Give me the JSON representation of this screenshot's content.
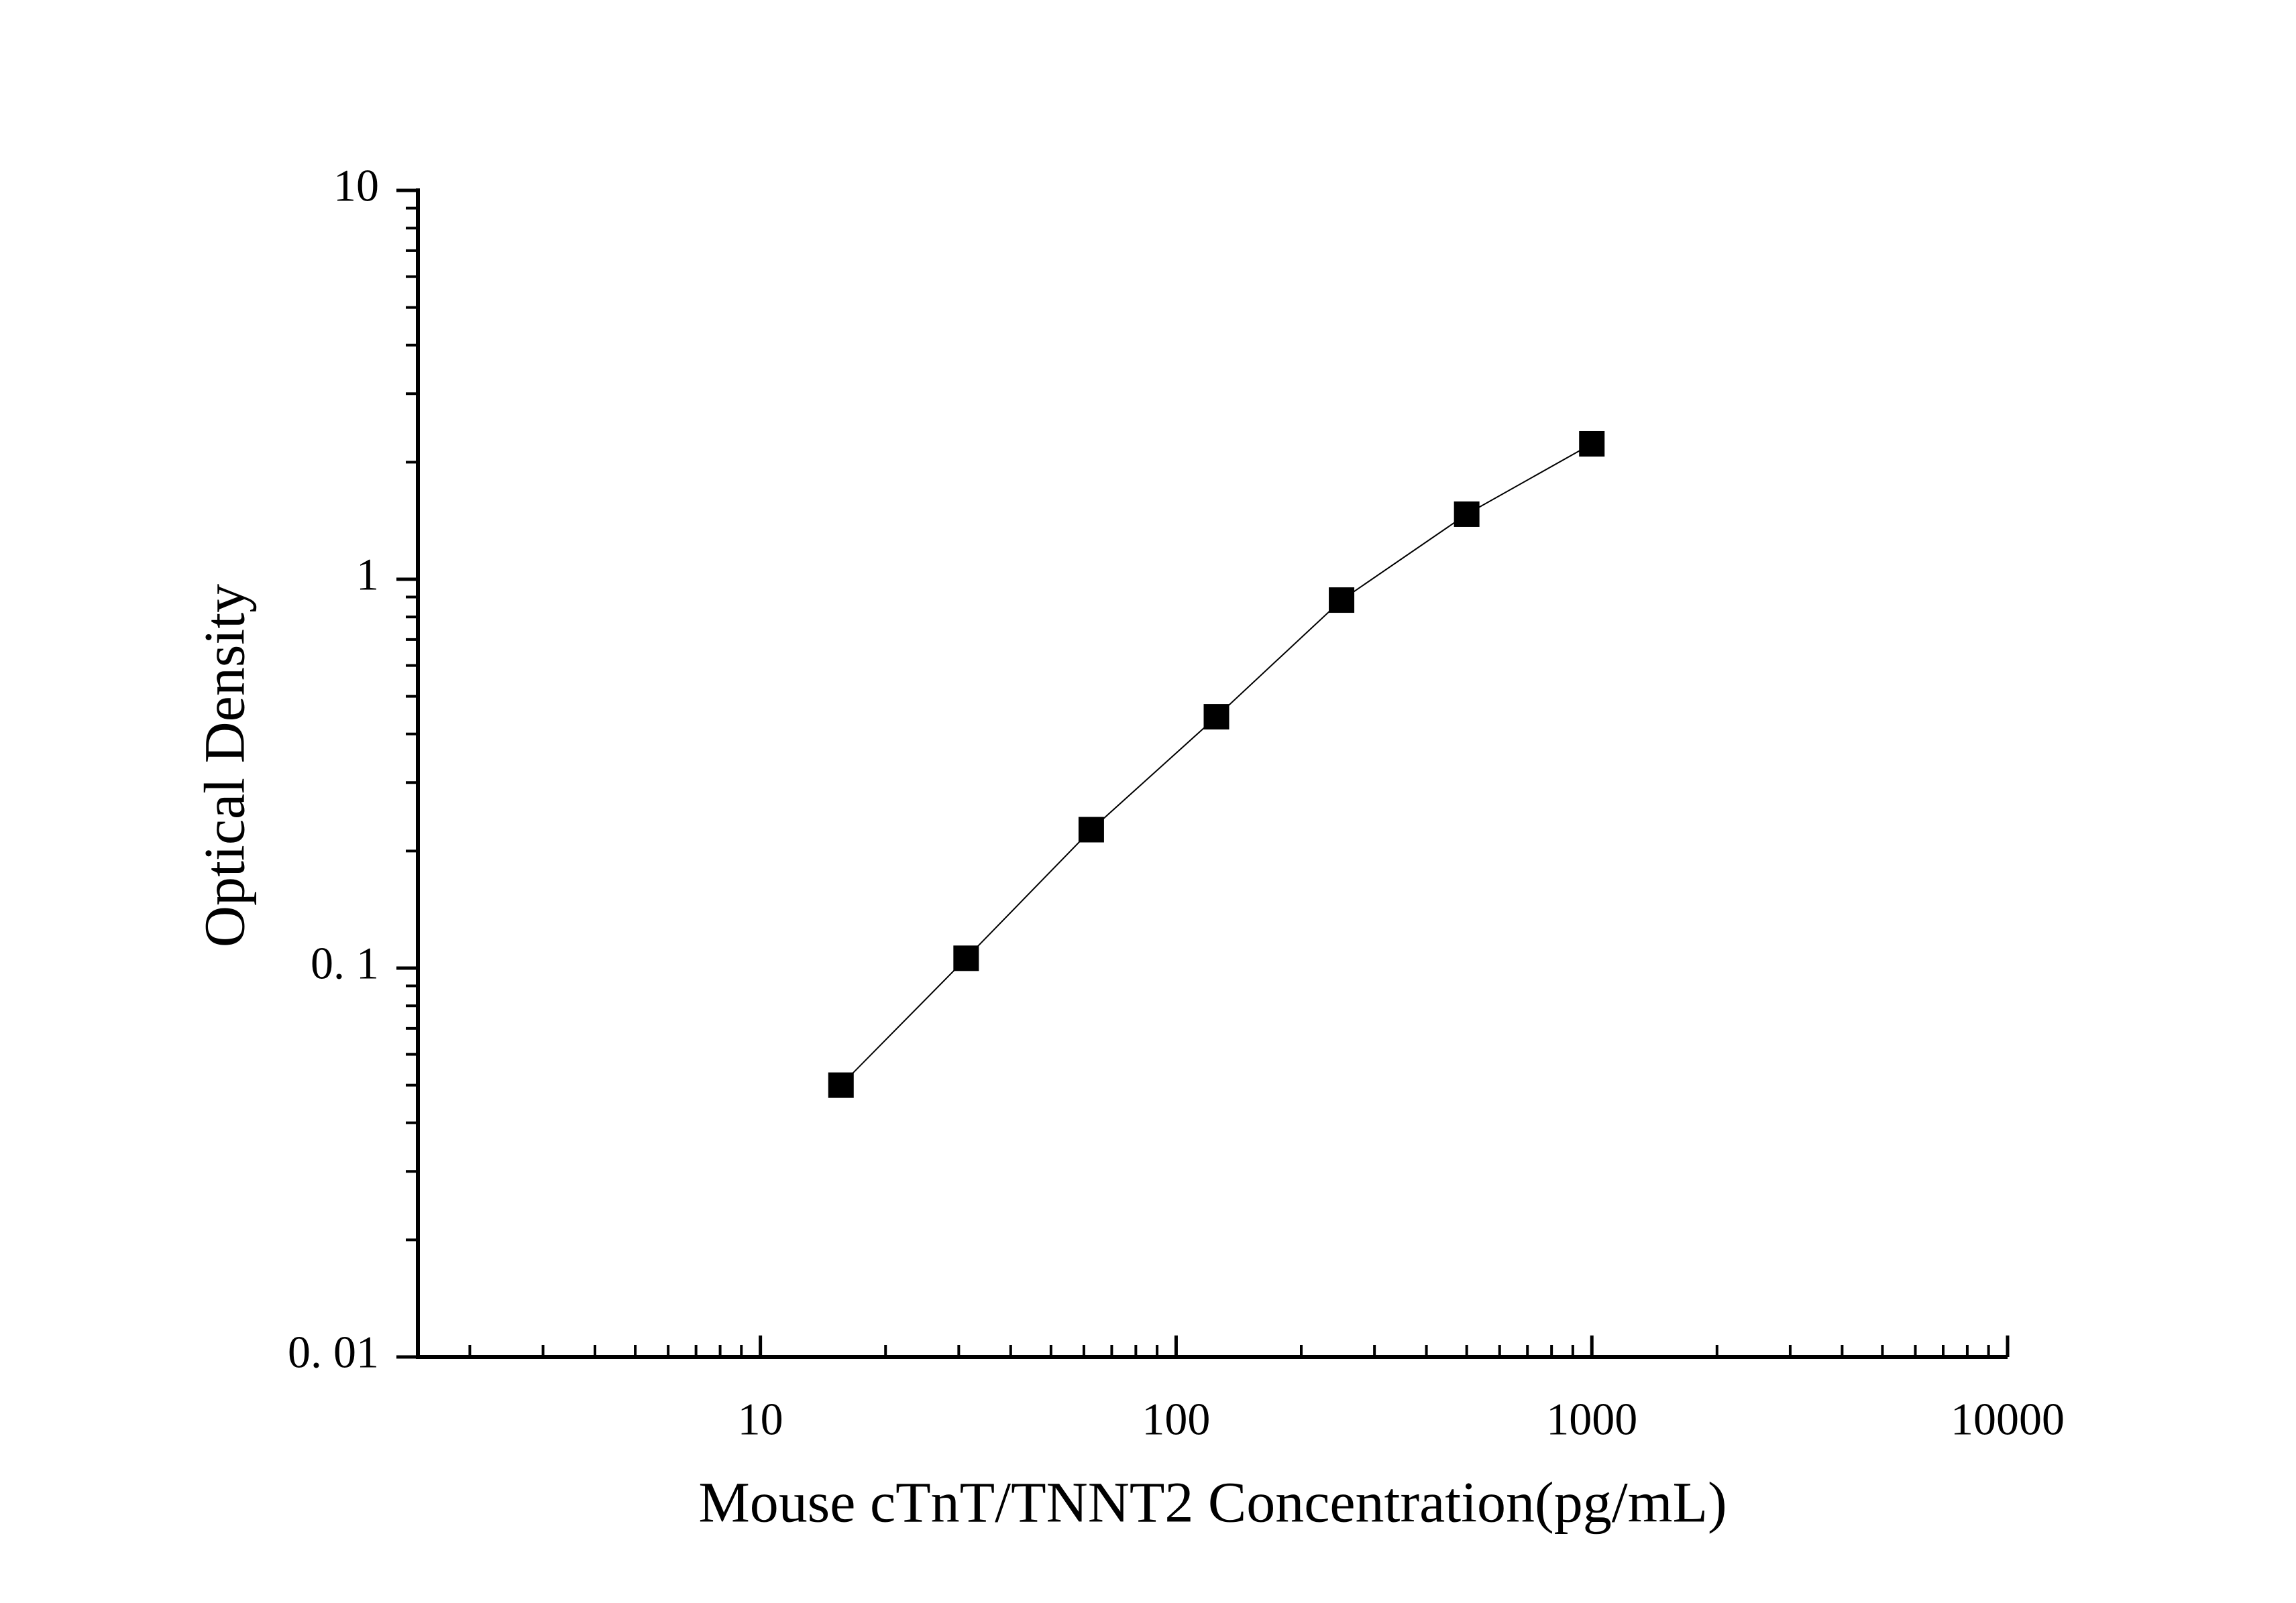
{
  "chart_data": {
    "type": "line",
    "xlabel": "Mouse cTnT/TNNT2 Concentration(pg/mL)",
    "ylabel": "Optical Density",
    "x": [
      15.625,
      31.25,
      62.5,
      125,
      250,
      500,
      1000
    ],
    "values": [
      0.05,
      0.106,
      0.227,
      0.443,
      0.884,
      1.47,
      2.23
    ],
    "color": "#000000",
    "xscale": "log",
    "yscale": "log",
    "xlim": [
      1.5,
      10000
    ],
    "ylim": [
      0.01,
      10
    ],
    "xticks": [
      10,
      100,
      1000,
      10000
    ],
    "yticks": [
      {
        "value": 0.01,
        "label": "0. 01"
      },
      {
        "value": 0.1,
        "label": "0. 1"
      },
      1,
      10
    ],
    "grid": false
  }
}
